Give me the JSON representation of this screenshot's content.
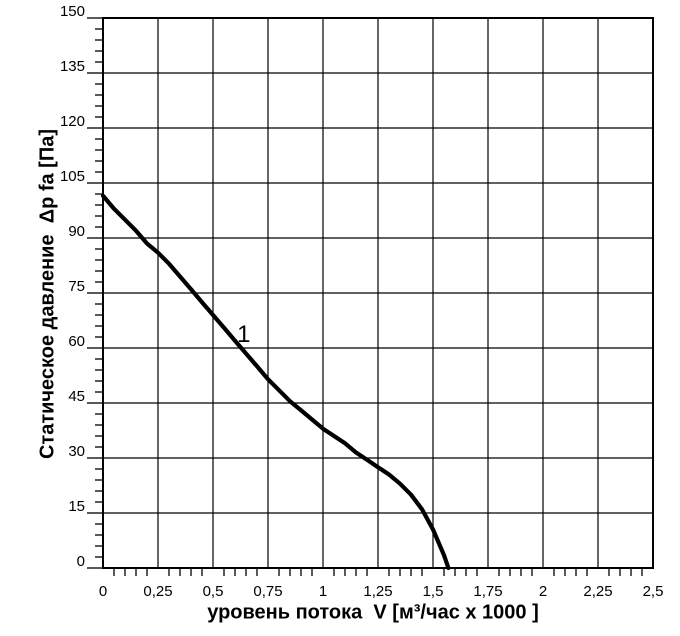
{
  "chart_data": {
    "type": "line",
    "title": "",
    "x_axis": {
      "label": "уровень потока  V [м³/час x 1000 ]",
      "min": 0,
      "max": 2.5,
      "major_tick_step": 0.25,
      "minor_tick_step": 0.05,
      "tick_values": [
        0,
        0.25,
        0.5,
        0.75,
        1,
        1.25,
        1.5,
        1.75,
        2,
        2.25,
        2.5
      ],
      "tick_labels": [
        "0",
        "0,25",
        "0,5",
        "0,75",
        "1",
        "1,25",
        "1,5",
        "1,75",
        "2",
        "2,25",
        "2,5"
      ]
    },
    "y_axis": {
      "label": "Статическое давление  Δp fa [Па]",
      "min": 0,
      "max": 150,
      "major_tick_step": 15,
      "minor_tick_step": 3,
      "tick_values": [
        0,
        15,
        30,
        45,
        60,
        75,
        90,
        105,
        120,
        135,
        150
      ],
      "tick_labels": [
        "0",
        "15",
        "30",
        "45",
        "60",
        "75",
        "90",
        "105",
        "120",
        "135",
        "150"
      ]
    },
    "grid": true,
    "legend": false,
    "series": [
      {
        "name": "1",
        "label_position": {
          "x": 0.64,
          "y": 63.5
        },
        "points": [
          [
            0,
            101.5
          ],
          [
            0.05,
            98
          ],
          [
            0.1,
            95
          ],
          [
            0.15,
            92
          ],
          [
            0.2,
            88.5
          ],
          [
            0.25,
            86
          ],
          [
            0.3,
            83
          ],
          [
            0.35,
            79.5
          ],
          [
            0.4,
            76
          ],
          [
            0.45,
            72.5
          ],
          [
            0.5,
            69
          ],
          [
            0.55,
            65.5
          ],
          [
            0.6,
            62
          ],
          [
            0.65,
            58.5
          ],
          [
            0.7,
            55
          ],
          [
            0.75,
            51.5
          ],
          [
            0.8,
            48.5
          ],
          [
            0.85,
            45.5
          ],
          [
            0.9,
            43
          ],
          [
            0.95,
            40.5
          ],
          [
            1,
            38
          ],
          [
            1.05,
            36
          ],
          [
            1.1,
            34
          ],
          [
            1.15,
            31.5
          ],
          [
            1.2,
            29.5
          ],
          [
            1.25,
            27.5
          ],
          [
            1.3,
            25.5
          ],
          [
            1.35,
            23
          ],
          [
            1.4,
            20
          ],
          [
            1.45,
            16
          ],
          [
            1.5,
            10.5
          ],
          [
            1.55,
            3.5
          ],
          [
            1.57,
            0
          ]
        ]
      }
    ],
    "colors": {
      "line": "#000000",
      "grid": "#000000",
      "axis": "#000000",
      "text": "#000000",
      "background": "#ffffff"
    }
  }
}
